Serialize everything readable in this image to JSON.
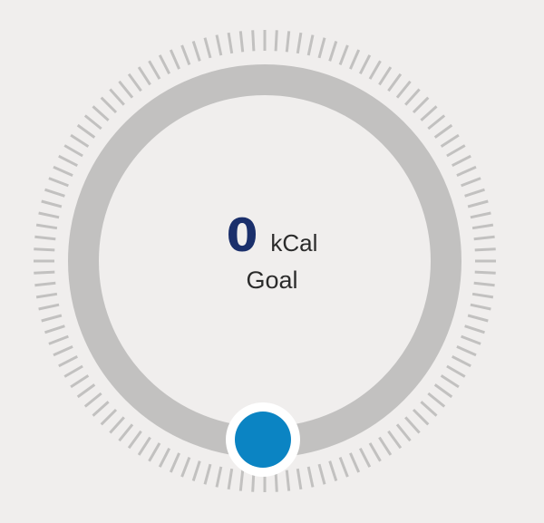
{
  "calorie_goal": {
    "value": "0",
    "unit": "kCal",
    "label": "Goal",
    "level": 0
  },
  "colors": {
    "background": "#f0eeed",
    "track": "#c2c1c0",
    "ticks": "#c2c1c0",
    "handle": "#0b84c3",
    "handle_ring": "#ffffff",
    "value_text": "#1a2f6b"
  },
  "icons": {
    "handle": "dial-handle-knob"
  }
}
